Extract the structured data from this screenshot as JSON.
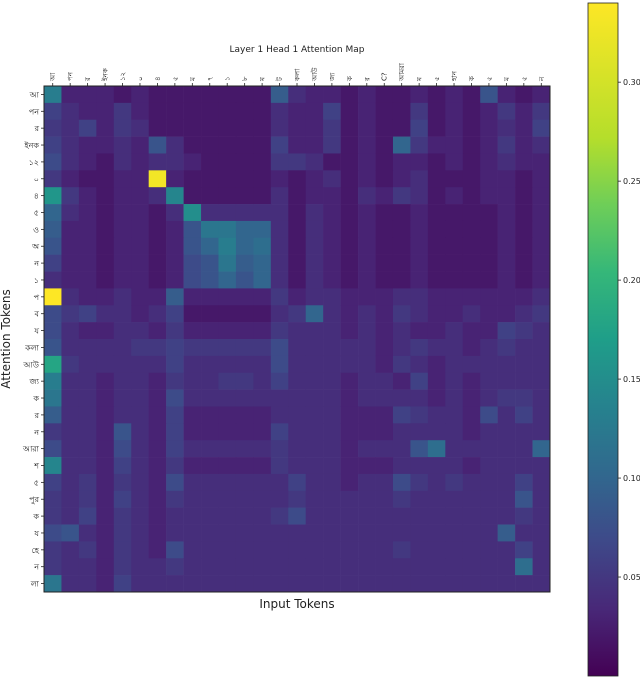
{
  "chart_data": {
    "type": "heatmap",
    "title": "Layer 1 Head 1 Attention Map",
    "xlabel": "Input Tokens",
    "ylabel": "Attention Tokens",
    "x_tokens": [
      "আ",
      "পন",
      "র",
      "ইনক",
      "১২",
      "০",
      "৪",
      "৫",
      "ম",
      "৭",
      "১",
      "৮",
      "ম",
      "ট",
      "কলা",
      "আউ",
      "জ্য",
      "ক",
      "র",
      "C?",
      "আমরা",
      "ম",
      "৫",
      "হান",
      "ক",
      "৫",
      "ম",
      "৫",
      "ন"
    ],
    "y_tokens": [
      "আ",
      "পন",
      "র",
      "ইনক",
      "১২",
      "০",
      "৪",
      "৫",
      "ও",
      "অ",
      "ন",
      "১",
      "প",
      "ব",
      "য",
      "কলা",
      "আউ",
      "জ্য",
      "ক",
      "র",
      "ন",
      "আরা",
      "শ",
      "৫",
      "পুর",
      "ক",
      "য",
      "হে",
      "ন",
      "লা"
    ],
    "colorbar": {
      "colormap": "viridis",
      "range": [
        0,
        0.34
      ],
      "ticks": [
        "0.05",
        "0.10",
        "0.15",
        "0.20",
        "0.25",
        "0.30"
      ]
    },
    "values": [
      [
        0.13,
        0.03,
        0.03,
        0.03,
        0.02,
        0.03,
        0.02,
        0.02,
        0.02,
        0.02,
        0.02,
        0.02,
        0.02,
        0.09,
        0.04,
        0.03,
        0.03,
        0.02,
        0.03,
        0.02,
        0.02,
        0.03,
        0.02,
        0.03,
        0.02,
        0.08,
        0.03,
        0.02,
        0.03
      ],
      [
        0.06,
        0.04,
        0.03,
        0.03,
        0.05,
        0.03,
        0.02,
        0.02,
        0.02,
        0.02,
        0.02,
        0.02,
        0.02,
        0.04,
        0.03,
        0.03,
        0.06,
        0.02,
        0.03,
        0.02,
        0.02,
        0.05,
        0.02,
        0.03,
        0.02,
        0.03,
        0.05,
        0.03,
        0.05
      ],
      [
        0.05,
        0.04,
        0.06,
        0.03,
        0.05,
        0.04,
        0.02,
        0.02,
        0.02,
        0.02,
        0.02,
        0.02,
        0.02,
        0.04,
        0.03,
        0.03,
        0.05,
        0.02,
        0.03,
        0.02,
        0.02,
        0.06,
        0.02,
        0.03,
        0.02,
        0.03,
        0.04,
        0.03,
        0.06
      ],
      [
        0.06,
        0.04,
        0.03,
        0.03,
        0.04,
        0.03,
        0.08,
        0.04,
        0.02,
        0.02,
        0.02,
        0.02,
        0.02,
        0.06,
        0.03,
        0.03,
        0.05,
        0.02,
        0.03,
        0.02,
        0.1,
        0.05,
        0.03,
        0.03,
        0.02,
        0.03,
        0.05,
        0.03,
        0.04
      ],
      [
        0.07,
        0.04,
        0.03,
        0.02,
        0.04,
        0.03,
        0.04,
        0.04,
        0.03,
        0.02,
        0.02,
        0.02,
        0.02,
        0.05,
        0.05,
        0.04,
        0.02,
        0.02,
        0.03,
        0.02,
        0.03,
        0.03,
        0.02,
        0.03,
        0.02,
        0.03,
        0.04,
        0.03,
        0.03
      ],
      [
        0.05,
        0.03,
        0.02,
        0.02,
        0.03,
        0.03,
        0.33,
        0.03,
        0.02,
        0.02,
        0.02,
        0.02,
        0.02,
        0.03,
        0.02,
        0.03,
        0.04,
        0.02,
        0.03,
        0.02,
        0.03,
        0.04,
        0.02,
        0.02,
        0.02,
        0.03,
        0.03,
        0.02,
        0.03
      ],
      [
        0.16,
        0.05,
        0.03,
        0.02,
        0.03,
        0.03,
        0.04,
        0.14,
        0.02,
        0.02,
        0.02,
        0.02,
        0.02,
        0.04,
        0.02,
        0.03,
        0.03,
        0.02,
        0.04,
        0.03,
        0.05,
        0.04,
        0.02,
        0.03,
        0.02,
        0.03,
        0.03,
        0.02,
        0.03
      ],
      [
        0.1,
        0.04,
        0.03,
        0.02,
        0.03,
        0.03,
        0.02,
        0.04,
        0.15,
        0.04,
        0.04,
        0.04,
        0.04,
        0.04,
        0.02,
        0.04,
        0.03,
        0.02,
        0.03,
        0.02,
        0.02,
        0.03,
        0.02,
        0.02,
        0.02,
        0.02,
        0.03,
        0.02,
        0.03
      ],
      [
        0.09,
        0.03,
        0.03,
        0.02,
        0.03,
        0.03,
        0.02,
        0.03,
        0.08,
        0.12,
        0.12,
        0.1,
        0.1,
        0.04,
        0.02,
        0.04,
        0.03,
        0.02,
        0.03,
        0.02,
        0.02,
        0.03,
        0.02,
        0.02,
        0.02,
        0.02,
        0.03,
        0.02,
        0.03
      ],
      [
        0.08,
        0.03,
        0.03,
        0.02,
        0.03,
        0.03,
        0.02,
        0.03,
        0.08,
        0.1,
        0.13,
        0.1,
        0.11,
        0.04,
        0.02,
        0.04,
        0.03,
        0.02,
        0.03,
        0.02,
        0.02,
        0.03,
        0.02,
        0.02,
        0.02,
        0.02,
        0.03,
        0.02,
        0.03
      ],
      [
        0.06,
        0.03,
        0.03,
        0.02,
        0.03,
        0.03,
        0.02,
        0.03,
        0.07,
        0.08,
        0.12,
        0.09,
        0.1,
        0.04,
        0.02,
        0.04,
        0.03,
        0.02,
        0.03,
        0.02,
        0.02,
        0.03,
        0.02,
        0.02,
        0.02,
        0.02,
        0.03,
        0.02,
        0.03
      ],
      [
        0.04,
        0.03,
        0.03,
        0.02,
        0.03,
        0.03,
        0.02,
        0.03,
        0.07,
        0.08,
        0.1,
        0.08,
        0.1,
        0.04,
        0.02,
        0.04,
        0.03,
        0.02,
        0.03,
        0.02,
        0.02,
        0.03,
        0.02,
        0.02,
        0.02,
        0.02,
        0.03,
        0.02,
        0.03
      ],
      [
        0.34,
        0.04,
        0.03,
        0.03,
        0.04,
        0.03,
        0.03,
        0.09,
        0.03,
        0.03,
        0.03,
        0.03,
        0.03,
        0.05,
        0.03,
        0.04,
        0.04,
        0.03,
        0.03,
        0.03,
        0.04,
        0.04,
        0.03,
        0.03,
        0.03,
        0.03,
        0.03,
        0.03,
        0.04
      ],
      [
        0.07,
        0.05,
        0.06,
        0.04,
        0.04,
        0.03,
        0.04,
        0.06,
        0.02,
        0.02,
        0.02,
        0.02,
        0.02,
        0.04,
        0.05,
        0.1,
        0.04,
        0.03,
        0.04,
        0.03,
        0.05,
        0.04,
        0.03,
        0.03,
        0.04,
        0.03,
        0.03,
        0.04,
        0.05
      ],
      [
        0.07,
        0.04,
        0.03,
        0.03,
        0.04,
        0.04,
        0.03,
        0.05,
        0.03,
        0.03,
        0.03,
        0.03,
        0.03,
        0.05,
        0.04,
        0.04,
        0.04,
        0.03,
        0.04,
        0.03,
        0.04,
        0.03,
        0.03,
        0.04,
        0.03,
        0.03,
        0.06,
        0.05,
        0.04
      ],
      [
        0.08,
        0.04,
        0.04,
        0.04,
        0.04,
        0.05,
        0.05,
        0.06,
        0.05,
        0.05,
        0.05,
        0.05,
        0.05,
        0.07,
        0.04,
        0.04,
        0.04,
        0.04,
        0.04,
        0.03,
        0.04,
        0.05,
        0.04,
        0.04,
        0.03,
        0.04,
        0.05,
        0.04,
        0.04
      ],
      [
        0.18,
        0.05,
        0.04,
        0.04,
        0.04,
        0.04,
        0.04,
        0.06,
        0.04,
        0.04,
        0.04,
        0.04,
        0.04,
        0.07,
        0.04,
        0.04,
        0.04,
        0.04,
        0.04,
        0.03,
        0.05,
        0.04,
        0.03,
        0.04,
        0.04,
        0.04,
        0.04,
        0.04,
        0.04
      ],
      [
        0.13,
        0.04,
        0.04,
        0.03,
        0.04,
        0.04,
        0.03,
        0.05,
        0.04,
        0.04,
        0.05,
        0.05,
        0.04,
        0.06,
        0.04,
        0.04,
        0.04,
        0.03,
        0.04,
        0.04,
        0.03,
        0.06,
        0.03,
        0.04,
        0.03,
        0.04,
        0.04,
        0.04,
        0.04
      ],
      [
        0.12,
        0.04,
        0.04,
        0.03,
        0.04,
        0.04,
        0.03,
        0.07,
        0.04,
        0.04,
        0.04,
        0.04,
        0.04,
        0.04,
        0.04,
        0.04,
        0.04,
        0.03,
        0.04,
        0.04,
        0.04,
        0.04,
        0.03,
        0.04,
        0.03,
        0.04,
        0.05,
        0.05,
        0.04
      ],
      [
        0.09,
        0.04,
        0.04,
        0.03,
        0.04,
        0.04,
        0.03,
        0.06,
        0.03,
        0.03,
        0.03,
        0.03,
        0.03,
        0.04,
        0.04,
        0.04,
        0.04,
        0.03,
        0.03,
        0.03,
        0.06,
        0.05,
        0.04,
        0.04,
        0.03,
        0.07,
        0.04,
        0.06,
        0.04
      ],
      [
        0.05,
        0.04,
        0.04,
        0.03,
        0.08,
        0.04,
        0.03,
        0.06,
        0.03,
        0.03,
        0.03,
        0.03,
        0.03,
        0.06,
        0.04,
        0.04,
        0.04,
        0.03,
        0.03,
        0.03,
        0.04,
        0.04,
        0.04,
        0.04,
        0.03,
        0.04,
        0.04,
        0.04,
        0.04
      ],
      [
        0.07,
        0.04,
        0.04,
        0.03,
        0.07,
        0.04,
        0.03,
        0.06,
        0.04,
        0.04,
        0.04,
        0.04,
        0.04,
        0.05,
        0.04,
        0.04,
        0.04,
        0.03,
        0.04,
        0.04,
        0.04,
        0.08,
        0.11,
        0.04,
        0.04,
        0.04,
        0.04,
        0.04,
        0.1
      ],
      [
        0.14,
        0.04,
        0.04,
        0.03,
        0.06,
        0.04,
        0.03,
        0.05,
        0.03,
        0.03,
        0.03,
        0.03,
        0.03,
        0.05,
        0.04,
        0.04,
        0.04,
        0.03,
        0.03,
        0.03,
        0.04,
        0.04,
        0.04,
        0.04,
        0.03,
        0.04,
        0.04,
        0.04,
        0.04
      ],
      [
        0.06,
        0.04,
        0.05,
        0.03,
        0.05,
        0.04,
        0.03,
        0.07,
        0.04,
        0.04,
        0.04,
        0.04,
        0.04,
        0.04,
        0.06,
        0.04,
        0.04,
        0.03,
        0.04,
        0.04,
        0.07,
        0.05,
        0.04,
        0.05,
        0.04,
        0.04,
        0.04,
        0.06,
        0.04
      ],
      [
        0.05,
        0.04,
        0.05,
        0.03,
        0.06,
        0.04,
        0.03,
        0.05,
        0.04,
        0.04,
        0.04,
        0.04,
        0.04,
        0.04,
        0.05,
        0.04,
        0.04,
        0.04,
        0.04,
        0.04,
        0.05,
        0.04,
        0.04,
        0.04,
        0.04,
        0.04,
        0.04,
        0.08,
        0.04
      ],
      [
        0.05,
        0.04,
        0.06,
        0.03,
        0.05,
        0.04,
        0.03,
        0.04,
        0.04,
        0.04,
        0.04,
        0.04,
        0.04,
        0.05,
        0.07,
        0.04,
        0.04,
        0.04,
        0.04,
        0.04,
        0.04,
        0.04,
        0.04,
        0.04,
        0.04,
        0.04,
        0.04,
        0.05,
        0.04
      ],
      [
        0.07,
        0.08,
        0.04,
        0.03,
        0.05,
        0.04,
        0.03,
        0.04,
        0.04,
        0.04,
        0.04,
        0.04,
        0.04,
        0.04,
        0.04,
        0.04,
        0.04,
        0.04,
        0.04,
        0.04,
        0.04,
        0.04,
        0.04,
        0.04,
        0.04,
        0.04,
        0.09,
        0.04,
        0.04
      ],
      [
        0.05,
        0.04,
        0.05,
        0.03,
        0.05,
        0.04,
        0.03,
        0.07,
        0.04,
        0.04,
        0.04,
        0.04,
        0.04,
        0.04,
        0.04,
        0.04,
        0.04,
        0.04,
        0.04,
        0.04,
        0.05,
        0.04,
        0.04,
        0.04,
        0.04,
        0.04,
        0.04,
        0.06,
        0.04
      ],
      [
        0.05,
        0.04,
        0.04,
        0.03,
        0.05,
        0.04,
        0.04,
        0.05,
        0.04,
        0.04,
        0.04,
        0.04,
        0.04,
        0.04,
        0.04,
        0.04,
        0.04,
        0.04,
        0.04,
        0.04,
        0.04,
        0.04,
        0.04,
        0.04,
        0.04,
        0.04,
        0.04,
        0.11,
        0.04
      ],
      [
        0.12,
        0.04,
        0.04,
        0.03,
        0.06,
        0.04,
        0.04,
        0.04,
        0.04,
        0.04,
        0.04,
        0.04,
        0.04,
        0.04,
        0.04,
        0.04,
        0.04,
        0.04,
        0.04,
        0.04,
        0.04,
        0.04,
        0.04,
        0.04,
        0.04,
        0.04,
        0.04,
        0.04,
        0.04
      ]
    ]
  }
}
